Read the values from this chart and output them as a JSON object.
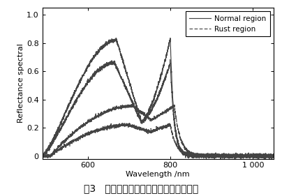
{
  "xlabel": "Wavelength /nm",
  "ylabel": "Reflectance spectral",
  "xlim": [
    490,
    1050
  ],
  "ylim": [
    -0.02,
    1.05
  ],
  "xtick_vals": [
    600,
    800,
    1000
  ],
  "xtick_labels": [
    "600",
    "800",
    "1 000"
  ],
  "ytick_vals": [
    0,
    0.2,
    0.4,
    0.6,
    0.8,
    1.0
  ],
  "ytick_labels": [
    "0",
    "0.2",
    "0.4",
    "0.6",
    "0.8",
    "1.0"
  ],
  "legend_entries": [
    "Normal region",
    "Rust region"
  ],
  "line_color": "#444444",
  "caption": "图3   样品正常区域和果锈区域的光谱曲线",
  "figsize": [
    4.04,
    2.81
  ],
  "dpi": 100,
  "bg_color": "#f0eeeb"
}
